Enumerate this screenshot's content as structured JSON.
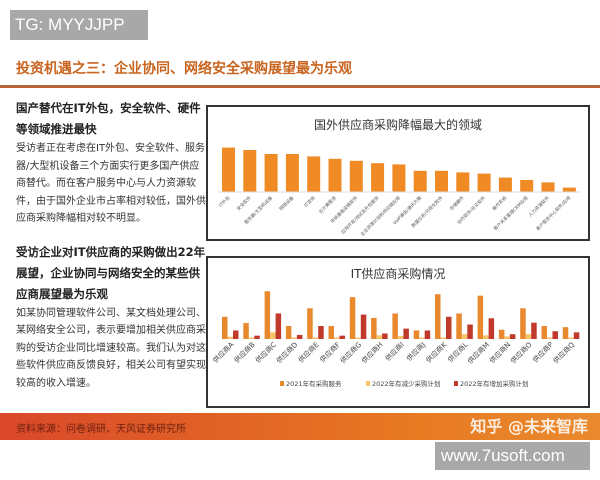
{
  "watermark_top": "TG: MYYJJPP",
  "title": "投资机遇之三：企业协同、网络安全采购展望最为乐观",
  "sections": [
    {
      "heading": "国产替代在IT外包，安全软件、硬件等领域推进最快",
      "body": "受访者正在考虑在IT外包、安全软件、服务器/大型机设备三个方面实行更多国产供应商替代。而在客户服务中心与人力资源软件，由于国外企业市占率相对较低，国外供应商采购降幅相对较不明显。"
    },
    {
      "heading": "受访企业对IT供应商的采购做出22年展望，企业协同与网络安全的某些供应商展望最为乐观",
      "body": "如某协同管理软件公司、某文档处理公司、某网络安全公司，表示要增加相关供应商采购的受访企业同比增速较高。我们认为对这些软件供应商反馈良好，相关公司有望实现较高的收入增速。"
    }
  ],
  "footer": "资料来源：问卷调研、天风证券研究所",
  "watermark_zhihu": "知乎 @未来智库",
  "watermark_site": "www.7usoft.com",
  "chart_data": [
    {
      "type": "bar",
      "title": "国外供应商采购降幅最大的领域",
      "color": "#f08a24",
      "categories": [
        "IT外包",
        "安全软件",
        "服务器/大型机设备",
        "网络设备",
        "IT咨询",
        "云计算服务",
        "传统基础设施软件",
        "应用开发/测试及外包服务",
        "企业资源计划和供应链应用",
        "VoIP通信/通讯方案",
        "数据分析/可视化软件",
        "存储硬件",
        "协作软件/社交软件",
        "操作系统",
        "客户关系管理CRM应用",
        "人力资源软件",
        "客户服务中心软件/应用"
      ],
      "values": [
        111,
        105,
        95,
        95,
        89,
        83,
        78,
        72,
        69,
        53,
        53,
        49,
        46,
        36,
        30,
        24,
        11
      ]
    },
    {
      "type": "bar",
      "title": "IT供应商采购情况",
      "legend": "bottom",
      "categories": [
        "供应商A",
        "供应商B",
        "供应商C",
        "供应商D",
        "供应商E",
        "供应商F",
        "供应商G",
        "供应商H",
        "供应商I",
        "供应商J",
        "供应商K",
        "供应商L",
        "供应商M",
        "供应商N",
        "供应商O",
        "供应商P",
        "供应商Q"
      ],
      "series": [
        {
          "name": "2021年有采购服务",
          "color": "#e8892e",
          "values": [
            60,
            43,
            129,
            35,
            83,
            35,
            113,
            57,
            69,
            23,
            121,
            69,
            117,
            25,
            83,
            35,
            32
          ]
        },
        {
          "name": "2022年有减少采购计划",
          "color": "#f7c46a",
          "values": [
            6,
            4,
            18,
            4,
            4,
            4,
            4,
            10,
            8,
            4,
            4,
            13,
            10,
            7,
            13,
            4,
            4
          ]
        },
        {
          "name": "2022年有增加采购计划",
          "color": "#c0392b",
          "values": [
            23,
            9,
            69,
            11,
            35,
            9,
            66,
            15,
            28,
            23,
            60,
            39,
            56,
            13,
            44,
            21,
            18
          ]
        }
      ]
    }
  ]
}
